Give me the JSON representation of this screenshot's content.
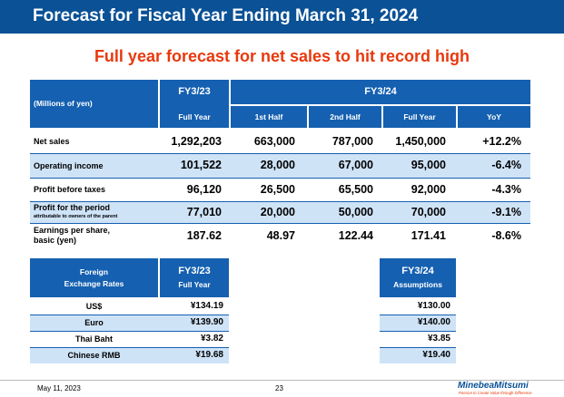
{
  "header": {
    "title": "Forecast for Fiscal Year Ending March 31, 2024",
    "subtitle": "Full year forecast for net sales to hit record high"
  },
  "forecast_table": {
    "unit_label": "(Millions of yen)",
    "fy23_label": "FY3/23",
    "fy24_label": "FY3/24",
    "columns": [
      "Full Year",
      "1st Half",
      "2nd Half",
      "Full Year",
      "YoY"
    ],
    "rows": [
      {
        "label": "Net sales",
        "sublabel": "",
        "values": [
          "1,292,203",
          "663,000",
          "787,000",
          "1,450,000",
          "+12.2%"
        ]
      },
      {
        "label": "Operating income",
        "sublabel": "",
        "values": [
          "101,522",
          "28,000",
          "67,000",
          "95,000",
          "-6.4%"
        ]
      },
      {
        "label": "Profit before taxes",
        "sublabel": "",
        "values": [
          "96,120",
          "26,500",
          "65,500",
          "92,000",
          "-4.3%"
        ]
      },
      {
        "label": "Profit for the period",
        "sublabel": "attributable to owners of the parent",
        "values": [
          "77,010",
          "20,000",
          "50,000",
          "70,000",
          "-9.1%"
        ]
      },
      {
        "label": "Earnings per share,",
        "sublabel": "basic (yen)",
        "values": [
          "187.62",
          "48.97",
          "122.44",
          "171.41",
          "-8.6%"
        ]
      }
    ]
  },
  "fx_table": {
    "header_line1": "Foreign",
    "header_line2": "Exchange Rates",
    "fy23_line1": "FY3/23",
    "fy23_line2": "Full Year",
    "fy24_line1": "FY3/24",
    "fy24_line2": "Assumptions",
    "rows": [
      {
        "currency": "US$",
        "fy23": "¥134.19",
        "fy24": "¥130.00"
      },
      {
        "currency": "Euro",
        "fy23": "¥139.90",
        "fy24": "¥140.00"
      },
      {
        "currency": "Thai Baht",
        "fy23": "¥3.82",
        "fy24": "¥3.85"
      },
      {
        "currency": "Chinese RMB",
        "fy23": "¥19.68",
        "fy24": "¥19.40"
      }
    ]
  },
  "footer": {
    "date": "May 11, 2023",
    "page": "23",
    "logo_name": "MinebeaMitsumi",
    "logo_tagline": "Passion to Create Value through Difference"
  },
  "colors": {
    "title_bar": "#0a5196",
    "header_cell": "#1560b0",
    "shade": "#cfe3f7",
    "accent": "#e8380d"
  }
}
